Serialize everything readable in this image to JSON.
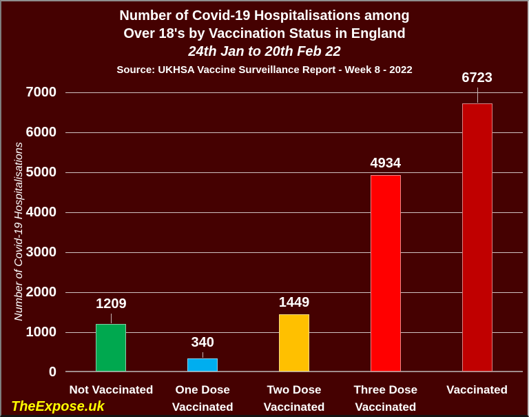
{
  "header": {
    "title_line1": "Number of Covid-19 Hospitalisations among",
    "title_line2": "Over 18's by Vaccination Status in England",
    "date_range": "24th Jan to 20th Feb 22",
    "source": "Source: UKHSA Vaccine Surveillance Report - Week 8 - 2022"
  },
  "watermark": "TheExpose.uk",
  "colors": {
    "background": "#450101",
    "grid": "#cfc2c2",
    "axis": "#a08d8d",
    "text": "#ffffff",
    "watermark": "#ffff00"
  },
  "chart_data": {
    "type": "bar",
    "title": "Number of Covid-19 Hospitalisations among Over 18's by Vaccination Status in England",
    "subtitle": "24th Jan to 20th Feb 22",
    "source": "Source: UKHSA Vaccine Surveillance Report - Week 8 - 2022",
    "xlabel": "",
    "ylabel": "Number of Covid-19 Hospitalisations",
    "ylim": [
      0,
      7000
    ],
    "yticks": [
      0,
      1000,
      2000,
      3000,
      4000,
      5000,
      6000,
      7000
    ],
    "grid": true,
    "legend": false,
    "categories": [
      "Not Vaccinated",
      "One Dose Vaccinated",
      "Two Dose Vaccinated",
      "Three Dose Vaccinated",
      "Vaccinated"
    ],
    "values": [
      1209,
      340,
      1449,
      4934,
      6723
    ],
    "points": [
      {
        "category": "Not Vaccinated",
        "category_lines": [
          "Not Vaccinated"
        ],
        "value": 1209,
        "color": "#00a84f",
        "label_gap": 18,
        "leader": true
      },
      {
        "category": "One Dose Vaccinated",
        "category_lines": [
          "One Dose",
          "Vaccinated"
        ],
        "value": 340,
        "color": "#00aeef",
        "label_gap": 12,
        "leader": true
      },
      {
        "category": "Two Dose Vaccinated",
        "category_lines": [
          "Two Dose",
          "Vaccinated"
        ],
        "value": 1449,
        "color": "#ffc000",
        "label_gap": 6,
        "leader": false
      },
      {
        "category": "Three Dose Vaccinated",
        "category_lines": [
          "Three Dose",
          "Vaccinated"
        ],
        "value": 4934,
        "color": "#ff0000",
        "label_gap": 6,
        "leader": false
      },
      {
        "category": "Vaccinated",
        "category_lines": [
          "Vaccinated"
        ],
        "value": 6723,
        "color": "#c00000",
        "label_gap": 26,
        "leader": true
      }
    ]
  }
}
